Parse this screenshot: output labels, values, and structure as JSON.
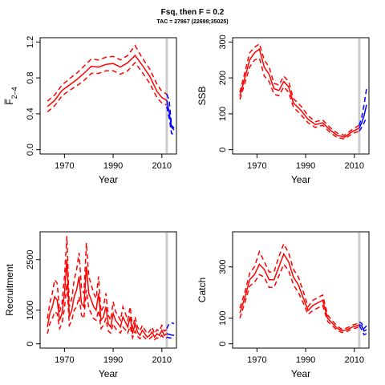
{
  "figure": {
    "title": "Fsq, then F = 0.2",
    "subtitle": "TAC = 27867 (22698;35025)",
    "colors": {
      "historic": "#ff0000",
      "projection": "#0000ff",
      "marker": "#cccccc",
      "axes": "#000000"
    }
  },
  "chart_data": [
    {
      "type": "line",
      "panel": "F",
      "xlabel": "Year",
      "ylabel": "F̅",
      "ylabel_sub": "2–4",
      "xlim": [
        1960,
        2016
      ],
      "ylim": [
        0,
        1.2
      ],
      "xticks": [
        "1970",
        "1990",
        "2010"
      ],
      "yticks": [
        "0.0",
        "0.4",
        "0.8",
        "1.2"
      ],
      "marker_year": 2012,
      "series": [
        {
          "kind": "historic",
          "x": [
            1963,
            1966,
            1969,
            1972,
            1975,
            1978,
            1981,
            1984,
            1987,
            1990,
            1993,
            1996,
            1999,
            2002,
            2005,
            2008,
            2010,
            2012
          ],
          "mid": [
            0.48,
            0.55,
            0.66,
            0.72,
            0.78,
            0.85,
            0.93,
            0.92,
            0.95,
            0.96,
            0.92,
            0.97,
            1.05,
            0.94,
            0.82,
            0.65,
            0.58,
            0.55
          ],
          "lower": [
            0.42,
            0.49,
            0.6,
            0.66,
            0.71,
            0.77,
            0.85,
            0.85,
            0.88,
            0.88,
            0.84,
            0.88,
            0.97,
            0.86,
            0.74,
            0.58,
            0.52,
            0.5
          ],
          "upper": [
            0.54,
            0.61,
            0.72,
            0.79,
            0.85,
            0.93,
            1.01,
            1.0,
            1.03,
            1.04,
            1.0,
            1.05,
            1.16,
            1.02,
            0.9,
            0.73,
            0.65,
            0.62
          ]
        },
        {
          "kind": "projection",
          "x": [
            2012,
            2013,
            2014,
            2015
          ],
          "mid": [
            0.55,
            0.42,
            0.25,
            0.22
          ],
          "lower": [
            0.48,
            0.35,
            0.18,
            0.17
          ],
          "upper": [
            0.62,
            0.55,
            0.27,
            0.24
          ]
        }
      ]
    },
    {
      "type": "line",
      "panel": "SSB",
      "xlabel": "Year",
      "ylabel": "SSB",
      "xlim": [
        1960,
        2016
      ],
      "ylim": [
        0,
        300
      ],
      "xticks": [
        "1970",
        "1990",
        "2010"
      ],
      "yticks": [
        "0",
        "100",
        "200",
        "300"
      ],
      "marker_year": 2012,
      "series": [
        {
          "kind": "historic",
          "x": [
            1963,
            1965,
            1967,
            1969,
            1971,
            1973,
            1975,
            1977,
            1979,
            1981,
            1983,
            1985,
            1988,
            1991,
            1994,
            1997,
            2000,
            2003,
            2006,
            2009,
            2012
          ],
          "mid": [
            150,
            200,
            250,
            270,
            280,
            230,
            210,
            170,
            165,
            190,
            175,
            130,
            110,
            85,
            70,
            75,
            55,
            40,
            35,
            50,
            60
          ],
          "lower": [
            140,
            185,
            230,
            250,
            255,
            205,
            190,
            155,
            150,
            175,
            160,
            118,
            98,
            75,
            62,
            68,
            48,
            34,
            30,
            44,
            52
          ],
          "upper": [
            160,
            215,
            270,
            285,
            295,
            250,
            230,
            185,
            180,
            205,
            190,
            142,
            122,
            95,
            78,
            83,
            62,
            46,
            40,
            56,
            68
          ]
        },
        {
          "kind": "projection",
          "x": [
            2012,
            2013,
            2014,
            2015
          ],
          "mid": [
            60,
            75,
            95,
            125
          ],
          "lower": [
            52,
            62,
            75,
            90
          ],
          "upper": [
            68,
            90,
            125,
            170
          ]
        }
      ]
    },
    {
      "type": "line",
      "panel": "Recruitment",
      "xlabel": "Year",
      "ylabel": "Recruitment",
      "xlim": [
        1960,
        2016
      ],
      "ylim": [
        0,
        3200
      ],
      "xticks": [
        "1970",
        "1990",
        "2010"
      ],
      "yticks": [
        "0",
        "1000",
        "2500"
      ],
      "marker_year": 2012,
      "series": [
        {
          "kind": "historic",
          "x": [
            1963,
            1964,
            1965,
            1966,
            1967,
            1968,
            1969,
            1970,
            1971,
            1972,
            1973,
            1974,
            1975,
            1976,
            1977,
            1978,
            1979,
            1980,
            1981,
            1982,
            1983,
            1984,
            1985,
            1986,
            1987,
            1988,
            1989,
            1990,
            1991,
            1992,
            1993,
            1994,
            1995,
            1996,
            1997,
            1998,
            1999,
            2000,
            2001,
            2002,
            2003,
            2004,
            2005,
            2006,
            2007,
            2008,
            2009,
            2010,
            2011,
            2012
          ],
          "mid": [
            500,
            900,
            1100,
            1400,
            1300,
            700,
            900,
            1500,
            2500,
            800,
            1000,
            1400,
            1600,
            2000,
            1200,
            1100,
            2300,
            1500,
            1300,
            1100,
            1000,
            1500,
            700,
            800,
            1100,
            600,
            500,
            900,
            700,
            600,
            500,
            800,
            650,
            500,
            800,
            300,
            600,
            350,
            250,
            400,
            300,
            200,
            250,
            350,
            200,
            300,
            250,
            400,
            250,
            300
          ],
          "lower": [
            300,
            600,
            750,
            950,
            900,
            450,
            600,
            1050,
            1800,
            550,
            700,
            1000,
            1100,
            1400,
            850,
            750,
            1600,
            1050,
            900,
            750,
            700,
            1000,
            450,
            550,
            750,
            380,
            320,
            600,
            450,
            380,
            320,
            500,
            420,
            320,
            520,
            180,
            380,
            220,
            150,
            250,
            180,
            120,
            150,
            220,
            120,
            180,
            150,
            250,
            150,
            180
          ],
          "upper": [
            750,
            1200,
            1500,
            1900,
            1800,
            950,
            1200,
            2000,
            3200,
            1100,
            1350,
            1900,
            2200,
            2700,
            1650,
            1500,
            3000,
            2000,
            1750,
            1500,
            1350,
            2000,
            950,
            1100,
            1500,
            850,
            700,
            1250,
            950,
            850,
            700,
            1100,
            900,
            700,
            1100,
            450,
            800,
            500,
            380,
            550,
            420,
            300,
            380,
            500,
            300,
            420,
            380,
            550,
            380,
            420
          ]
        },
        {
          "kind": "projection",
          "x": [
            2012,
            2013,
            2014,
            2015
          ],
          "mid": [
            300,
            280,
            260,
            250
          ],
          "lower": [
            200,
            180,
            170,
            160
          ],
          "upper": [
            450,
            600,
            620,
            600
          ]
        }
      ]
    },
    {
      "type": "line",
      "panel": "Catch",
      "xlabel": "Year",
      "ylabel": "Catch",
      "xlim": [
        1960,
        2016
      ],
      "ylim": [
        0,
        420
      ],
      "xticks": [
        "1970",
        "1990",
        "2010"
      ],
      "yticks": [
        "0",
        "100",
        "300"
      ],
      "marker_year": 2012,
      "series": [
        {
          "kind": "historic",
          "x": [
            1963,
            1965,
            1967,
            1969,
            1971,
            1973,
            1975,
            1977,
            1979,
            1981,
            1983,
            1985,
            1987,
            1989,
            1991,
            1993,
            1995,
            1997,
            1999,
            2001,
            2003,
            2005,
            2007,
            2009,
            2011,
            2012
          ],
          "mid": [
            120,
            180,
            250,
            270,
            310,
            290,
            250,
            250,
            300,
            350,
            320,
            260,
            230,
            180,
            130,
            150,
            160,
            170,
            100,
            80,
            60,
            50,
            55,
            65,
            70,
            75
          ],
          "lower": [
            100,
            160,
            225,
            240,
            270,
            260,
            220,
            220,
            265,
            310,
            285,
            230,
            200,
            160,
            115,
            130,
            140,
            150,
            88,
            70,
            52,
            44,
            48,
            58,
            62,
            68
          ],
          "upper": [
            140,
            200,
            275,
            300,
            360,
            320,
            280,
            280,
            340,
            390,
            355,
            290,
            260,
            205,
            145,
            170,
            180,
            190,
            112,
            90,
            68,
            56,
            62,
            72,
            78,
            82
          ]
        },
        {
          "kind": "projection",
          "x": [
            2012,
            2013,
            2014,
            2015
          ],
          "mid": [
            75,
            70,
            50,
            55
          ],
          "lower": [
            70,
            55,
            35,
            40
          ],
          "upper": [
            85,
            80,
            60,
            70
          ]
        }
      ]
    }
  ]
}
